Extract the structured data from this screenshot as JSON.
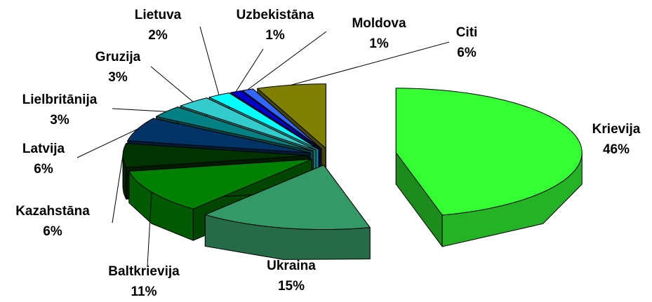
{
  "chart_data": {
    "type": "pie3d",
    "categories": [
      "Krievija",
      "Ukraina",
      "Baltkrievija",
      "Kazahstāna",
      "Latvija",
      "Lielbritānija",
      "Gruzija",
      "Lietuva",
      "Uzbekistāna",
      "Moldova",
      "Citi"
    ],
    "values": [
      46,
      15,
      11,
      6,
      6,
      3,
      3,
      2,
      1,
      1,
      6
    ],
    "value_labels": [
      "46%",
      "15%",
      "11%",
      "6%",
      "6%",
      "3%",
      "3%",
      "2%",
      "1%",
      "1%",
      "6%"
    ],
    "colors": [
      "#33ff33",
      "#339966",
      "#008000",
      "#003300",
      "#003366",
      "#008080",
      "#33cccc",
      "#00ffff",
      "#0000cc",
      "#3366ff",
      "#808000"
    ]
  }
}
